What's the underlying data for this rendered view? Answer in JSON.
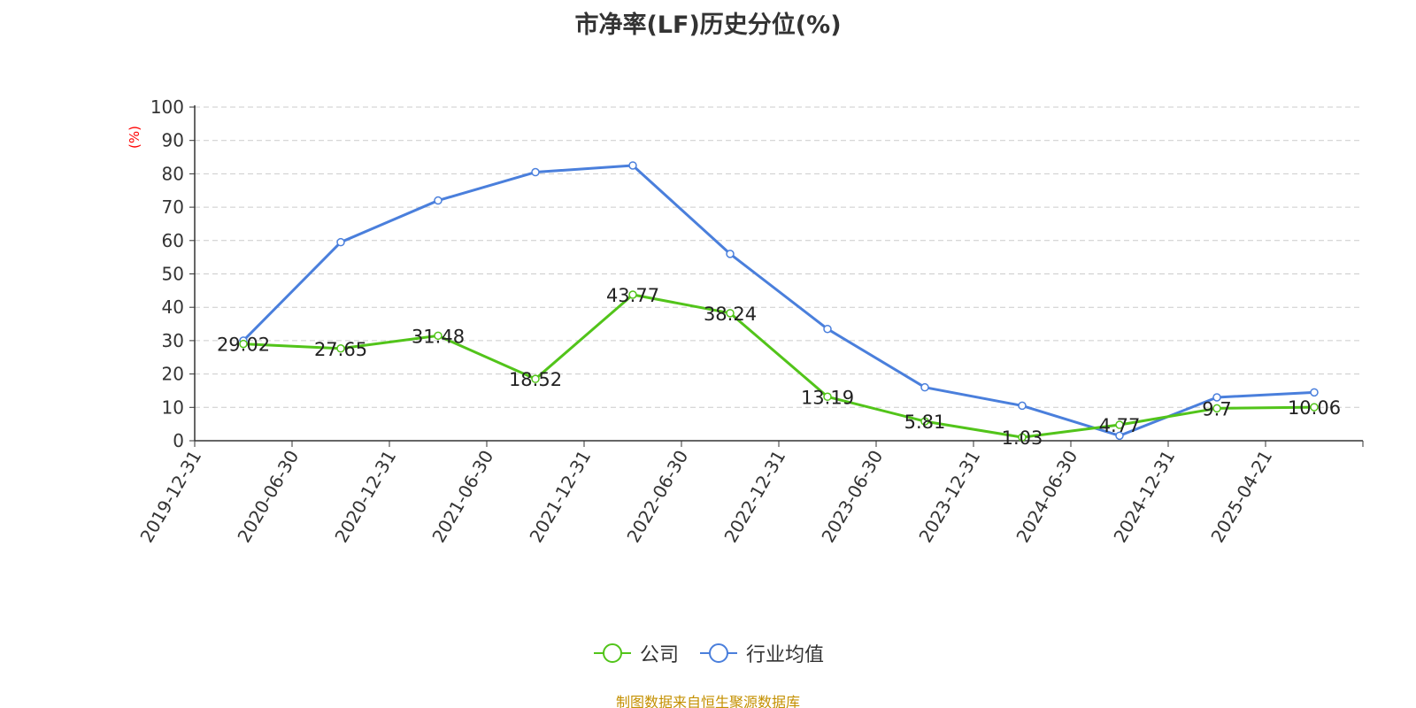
{
  "chart_data": {
    "type": "line",
    "title": "市净率(LF)历史分位(%)",
    "ylabel": "(%)",
    "xlabel": "",
    "ylim": [
      0,
      100
    ],
    "yticks": [
      0,
      10,
      20,
      30,
      40,
      50,
      60,
      70,
      80,
      90,
      100
    ],
    "categories": [
      "2019-12-31",
      "2020-06-30",
      "2020-12-31",
      "2021-06-30",
      "2021-12-31",
      "2022-06-30",
      "2022-12-31",
      "2023-06-30",
      "2023-12-31",
      "2024-06-30",
      "2024-12-31",
      "2025-04-21"
    ],
    "series": [
      {
        "name": "公司",
        "color": "#52c41a",
        "values": [
          29.02,
          27.65,
          31.48,
          18.52,
          43.77,
          38.24,
          13.19,
          5.81,
          1.03,
          4.77,
          9.7,
          10.06
        ],
        "labels": [
          "29.02",
          "27.65",
          "31.48",
          "18.52",
          "43.77",
          "38.24",
          "13.19",
          "5.81",
          "1.03",
          "4.77",
          "9.7",
          "10.06"
        ]
      },
      {
        "name": "行业均值",
        "color": "#4a7fdc",
        "values": [
          30.0,
          59.5,
          72.0,
          80.5,
          82.5,
          56.0,
          33.5,
          16.0,
          10.5,
          1.5,
          13.0,
          14.5
        ]
      }
    ],
    "grid": true,
    "legend_position": "bottom"
  },
  "footer": {
    "source": "制图数据来自恒生聚源数据库"
  }
}
